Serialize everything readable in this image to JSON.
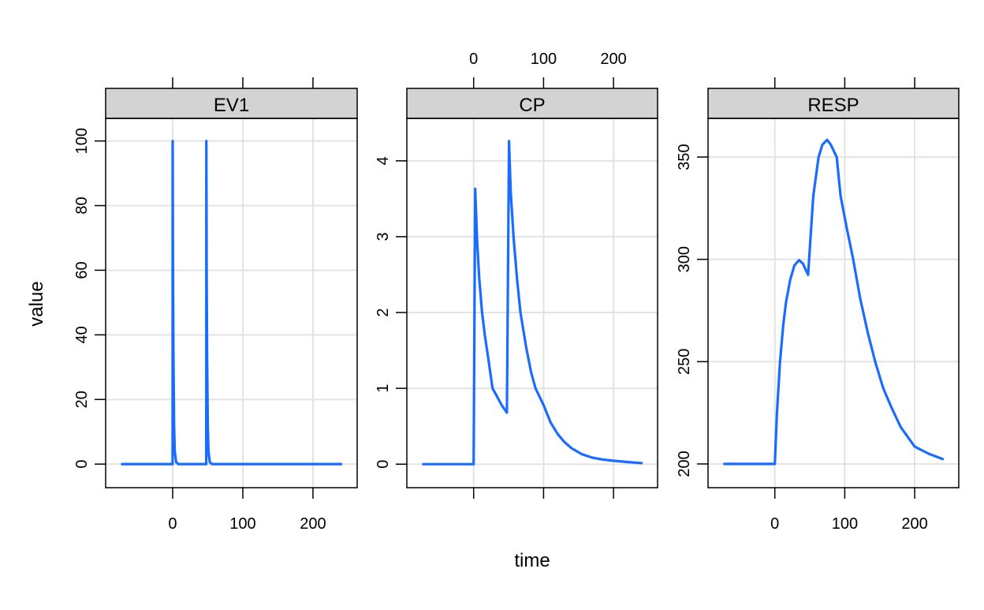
{
  "chart_data": {
    "type": "line",
    "layout": "lattice 3 panels, shared x axis, free y axes",
    "xlabel": "time",
    "ylabel": "value",
    "xlim": [
      -95.5,
      263
    ],
    "x_ticks": [
      0,
      100,
      200
    ],
    "x_tick_labels": [
      "0",
      "100",
      "200"
    ],
    "grid": true,
    "line_color": "#1a6cff",
    "strip_color": "#d3d3d3",
    "panels": [
      {
        "name": "EV1",
        "ylim": [
          -7.3,
          107
        ],
        "y_ticks": [
          0,
          20,
          40,
          60,
          80,
          100
        ],
        "y_tick_labels": [
          "0",
          "20",
          "40",
          "60",
          "80",
          "100"
        ],
        "x_tick_labels_side": "bottom",
        "series": {
          "x": [
            -72,
            -0.1,
            0,
            0.5,
            1,
            2,
            3,
            5,
            8,
            47.9,
            48,
            48.5,
            49,
            50,
            51,
            53,
            56,
            240
          ],
          "y": [
            0,
            0,
            100,
            60,
            35,
            12,
            4,
            0.6,
            0,
            0,
            100,
            60,
            35,
            12,
            4,
            0.6,
            0,
            0
          ]
        }
      },
      {
        "name": "CP",
        "ylim": [
          -0.31,
          4.56
        ],
        "y_ticks": [
          0,
          1,
          2,
          3,
          4
        ],
        "y_tick_labels": [
          "0",
          "1",
          "2",
          "3",
          "4"
        ],
        "x_tick_labels_side": "top",
        "series": {
          "x": [
            -72,
            0,
            2.2,
            5,
            8,
            12,
            16,
            20,
            27,
            33,
            40,
            47.6,
            50.6,
            53,
            57,
            62,
            67,
            75,
            82,
            88.5,
            100,
            110,
            120,
            129,
            140,
            155,
            170,
            185,
            200,
            220,
            240
          ],
          "y": [
            0,
            0,
            3.63,
            2.95,
            2.45,
            2.0,
            1.7,
            1.45,
            1.0,
            0.9,
            0.78,
            0.68,
            4.26,
            3.6,
            3.0,
            2.45,
            2.0,
            1.55,
            1.22,
            1.0,
            0.78,
            0.55,
            0.4,
            0.3,
            0.21,
            0.13,
            0.085,
            0.06,
            0.045,
            0.028,
            0.015
          ]
        }
      },
      {
        "name": "RESP",
        "ylim": [
          188.4,
          368.9
        ],
        "y_ticks": [
          200,
          250,
          300,
          350
        ],
        "y_tick_labels": [
          "200",
          "250",
          "300",
          "350"
        ],
        "x_tick_labels_side": "bottom",
        "series": {
          "x": [
            -72,
            0,
            3,
            7.4,
            12,
            16,
            22,
            28,
            34.6,
            40,
            47.6,
            51,
            55,
            62.5,
            68,
            74.7,
            80,
            88.5,
            94,
            103,
            112,
            122,
            133,
            143.5,
            155,
            166.5,
            180,
            200,
            220,
            240
          ],
          "y": [
            200,
            200,
            225,
            250,
            268,
            279,
            290,
            297,
            299.6,
            298,
            292.4,
            310,
            331,
            350,
            356,
            358.4,
            356,
            350,
            331,
            315,
            300,
            281,
            264,
            250,
            237,
            227.8,
            218,
            208.5,
            205,
            202.4
          ]
        }
      }
    ]
  }
}
